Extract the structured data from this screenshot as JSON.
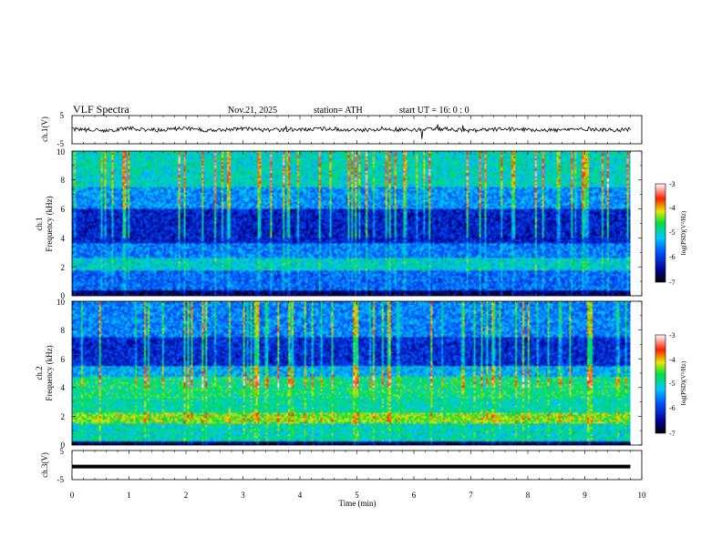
{
  "header": {
    "title": "VLF  Spectra",
    "date": "Nov.21, 2025",
    "station": "station= ATH",
    "start_ut": "start  UT  =   16: 0  : 0"
  },
  "chart_data": [
    {
      "type": "line",
      "panel": "ch1-waveform",
      "ylabel": "ch.1(V)",
      "yticks": [
        "5",
        "-5"
      ],
      "ylim": [
        -5,
        5
      ],
      "x": [
        0,
        0.5,
        1,
        1.5,
        2,
        2.5,
        3,
        3.5,
        4,
        4.5,
        5,
        5.5,
        6,
        6.5,
        7,
        7.5,
        8,
        8.5,
        9,
        9.5,
        9.8
      ],
      "values": [
        0.2,
        -0.3,
        0.4,
        -0.1,
        0.5,
        -0.4,
        0.3,
        -0.2,
        0.1,
        0.4,
        -0.3,
        0.2,
        -0.1,
        0.3,
        -0.4,
        0.2,
        0.1,
        -0.2,
        0.3,
        -0.1,
        0.0
      ]
    },
    {
      "type": "heatmap",
      "panel": "ch1-spectrogram",
      "ylabel_line1": "ch.1",
      "ylabel_line2": "Frequency (kHz)",
      "yticks": [
        "10",
        "8",
        "6",
        "4",
        "2",
        "0"
      ],
      "ylim": [
        0,
        10
      ],
      "colorbar_label": "log(PSD)(V²/Hz)",
      "colorbar_ticks": [
        "-3",
        "-4",
        "-5",
        "-6",
        "-7"
      ]
    },
    {
      "type": "heatmap",
      "panel": "ch2-spectrogram",
      "ylabel_line1": "ch.2",
      "ylabel_line2": "Frequency (kHz)",
      "yticks": [
        "10",
        "8",
        "6",
        "4",
        "2",
        "0"
      ],
      "ylim": [
        0,
        10
      ],
      "colorbar_label": "log(PSD)(V²/Hz)",
      "colorbar_ticks": [
        "-3",
        "-4",
        "-5",
        "-6",
        "-7"
      ]
    },
    {
      "type": "line",
      "panel": "ch3-waveform",
      "ylabel": "ch.3(V)",
      "yticks": [
        "5",
        "-5"
      ],
      "ylim": [
        -5,
        5
      ],
      "x": [
        0,
        9.8
      ],
      "values": [
        -0.5,
        -0.5
      ]
    }
  ],
  "xaxis": {
    "label": "Time  (min)",
    "ticks": [
      "0",
      "1",
      "2",
      "3",
      "4",
      "5",
      "6",
      "7",
      "8",
      "9",
      "10"
    ],
    "xlim": [
      0,
      10
    ],
    "data_end": 9.8
  }
}
